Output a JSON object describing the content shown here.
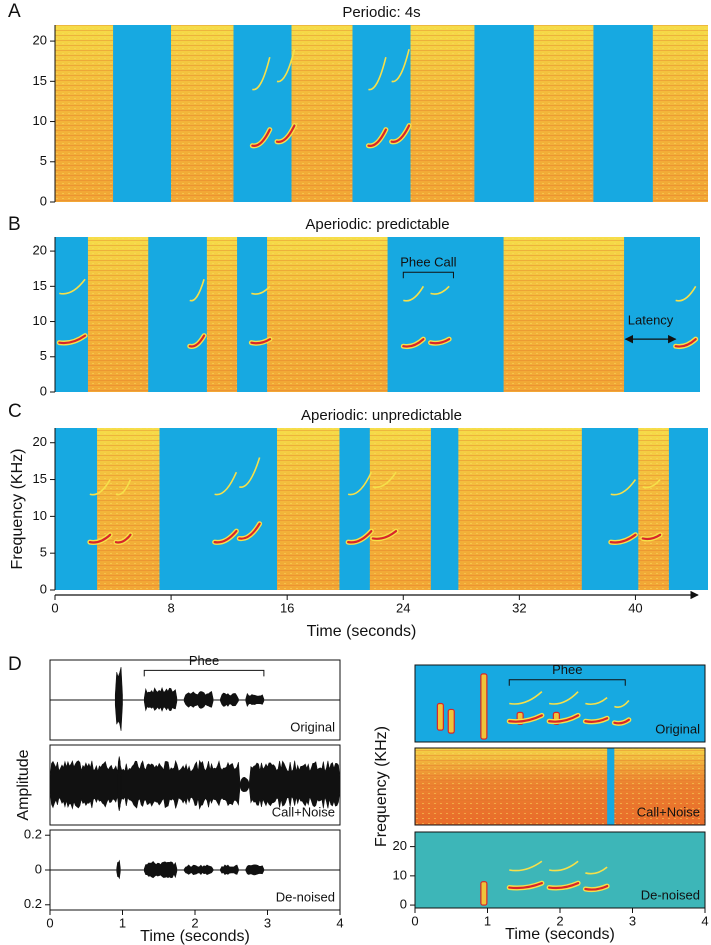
{
  "chart_data": [
    {
      "type": "spectrogram",
      "panel": "A",
      "title": "Periodic: 4s",
      "xlim": [
        0,
        45
      ],
      "ylim": [
        0,
        22
      ],
      "yticks": [
        0,
        5,
        10,
        15,
        20
      ],
      "background": "#17a9e1",
      "noise_color": "#f3b13a",
      "noise": [
        [
          0,
          4
        ],
        [
          8,
          12.3
        ],
        [
          16.3,
          20.5
        ],
        [
          24.5,
          28.9
        ],
        [
          33,
          37.1
        ],
        [
          41.2,
          45
        ]
      ],
      "calls": [
        [
          13.6,
          14.8,
          7,
          9
        ],
        [
          15.3,
          16.5,
          7.5,
          9.5
        ],
        [
          21.6,
          22.8,
          7,
          9
        ],
        [
          23.2,
          24.4,
          7.5,
          9.5
        ]
      ]
    },
    {
      "type": "spectrogram",
      "panel": "B",
      "title": "Aperiodic: predictable",
      "xlim": [
        0,
        45
      ],
      "ylim": [
        0,
        22
      ],
      "yticks": [
        0,
        5,
        10,
        15,
        20
      ],
      "background": "#17a9e1",
      "noise_color": "#f3b13a",
      "noise": [
        [
          2.3,
          6.5
        ],
        [
          10.6,
          12.7
        ],
        [
          14.8,
          23.2
        ],
        [
          31.3,
          39.7
        ]
      ],
      "calls": [
        [
          0.3,
          2.1,
          7,
          8
        ],
        [
          9.4,
          10.4,
          6.5,
          8
        ],
        [
          13.7,
          15,
          7,
          7.5
        ],
        [
          24.3,
          25.7,
          6.5,
          7.5
        ],
        [
          26.2,
          27.5,
          7,
          7.5
        ],
        [
          43.3,
          44.7,
          6.5,
          7.5
        ]
      ],
      "annotations": [
        {
          "text": "Phee Call",
          "style": "bracket",
          "x": [
            24.3,
            27.8
          ],
          "y": 17
        },
        {
          "text": "Latency",
          "style": "arrow",
          "x": [
            39.8,
            43.3
          ],
          "y": 7.5
        }
      ]
    },
    {
      "type": "spectrogram",
      "panel": "C",
      "title": "Aperiodic: unpredictable",
      "xlim": [
        0,
        45
      ],
      "ylim": [
        0,
        22
      ],
      "yticks": [
        0,
        5,
        10,
        15,
        20
      ],
      "xticks": [
        0,
        8,
        16,
        24,
        32,
        40
      ],
      "x_label": "Time (seconds)",
      "y_label": "Frequency (KHz)",
      "background": "#17a9e1",
      "noise_color": "#f3b13a",
      "noise": [
        [
          2.9,
          7.2
        ],
        [
          15.3,
          19.6
        ],
        [
          21.7,
          25.9
        ],
        [
          27.8,
          36.3
        ],
        [
          40.2,
          42.3
        ]
      ],
      "calls": [
        [
          2.4,
          3.8,
          6.5,
          7.5
        ],
        [
          4.2,
          5.2,
          6.5,
          7.5
        ],
        [
          11,
          12.5,
          6.5,
          8
        ],
        [
          12.7,
          14.1,
          7,
          9
        ],
        [
          20.2,
          21.8,
          6.5,
          8
        ],
        [
          21.9,
          23.5,
          7,
          8
        ],
        [
          38.3,
          40,
          6.5,
          7.5
        ],
        [
          40.5,
          41.7,
          7,
          7.5
        ]
      ]
    },
    {
      "type": "waveform",
      "panel": "D",
      "label": "Original",
      "xlim": [
        0,
        4
      ],
      "ylim": [
        -0.23,
        0.23
      ],
      "bursts": [
        [
          0.9,
          1.0,
          0.2
        ],
        [
          1.3,
          1.75,
          0.07
        ],
        [
          1.85,
          2.25,
          0.05
        ],
        [
          2.35,
          2.6,
          0.04
        ],
        [
          2.7,
          2.95,
          0.04
        ]
      ],
      "annotations": [
        {
          "text": "Phee",
          "style": "bracket",
          "x": [
            1.3,
            2.95
          ],
          "y": 0.17
        }
      ]
    },
    {
      "type": "waveform",
      "label": "Call+Noise",
      "xlim": [
        0,
        4
      ],
      "ylim": [
        -0.23,
        0.23
      ],
      "y_label": "Amplitude",
      "bursts": [
        [
          0,
          2.62,
          0.14
        ],
        [
          2.62,
          2.75,
          0.05
        ],
        [
          2.75,
          4,
          0.14
        ],
        [
          0.93,
          0.98,
          0.22
        ]
      ]
    },
    {
      "type": "waveform",
      "label": "De-noised",
      "xlim": [
        0,
        4
      ],
      "ylim": [
        -0.23,
        0.23
      ],
      "yticks": [
        0.2,
        0,
        {
          "value": -0.2,
          "label": "0.2"
        }
      ],
      "xticks": [
        0,
        1,
        2,
        3,
        4
      ],
      "x_label": "Time (seconds)",
      "bursts": [
        [
          0.92,
          0.97,
          0.07
        ],
        [
          1.3,
          1.75,
          0.05
        ],
        [
          1.85,
          2.25,
          0.03
        ],
        [
          2.35,
          2.6,
          0.03
        ],
        [
          2.7,
          2.95,
          0.03
        ]
      ]
    },
    {
      "type": "spectrogram",
      "label": "Original",
      "xlim": [
        0,
        4
      ],
      "ylim": [
        -1,
        25
      ],
      "background": "#17a9e1",
      "noise_color": "#f3b13a",
      "clicks": [
        [
          0.35,
          3,
          12
        ],
        [
          0.5,
          2,
          10
        ],
        [
          0.95,
          0,
          22
        ],
        [
          1.45,
          5,
          9
        ],
        [
          1.95,
          5,
          9
        ]
      ],
      "calls": [
        [
          1.3,
          1.75,
          6,
          8
        ],
        [
          1.85,
          2.25,
          6,
          8
        ],
        [
          2.35,
          2.65,
          6,
          7
        ],
        [
          2.75,
          2.95,
          5.5,
          6.5
        ]
      ],
      "annotations": [
        {
          "text": "Phee",
          "style": "bracket",
          "x": [
            1.3,
            2.9
          ],
          "y": 20
        }
      ]
    },
    {
      "type": "spectrogram",
      "label": "Call+Noise",
      "xlim": [
        0,
        4
      ],
      "ylim": [
        -1,
        25
      ],
      "y_label": "Frequency (KHz)",
      "background": "#17a9e1",
      "noise_color": "#e8622a",
      "noise": [
        [
          0,
          2.65
        ],
        [
          2.75,
          4
        ]
      ]
    },
    {
      "type": "spectrogram",
      "label": "De-noised",
      "xlim": [
        0,
        4
      ],
      "ylim": [
        -1,
        25
      ],
      "yticks": [
        0,
        10,
        20
      ],
      "xticks": [
        0,
        1,
        2,
        3,
        4
      ],
      "x_label": "Time (seconds)",
      "background": "#3db6b8",
      "noise_color": "#f3b13a",
      "clicks": [
        [
          0.95,
          0,
          8
        ]
      ],
      "calls": [
        [
          1.3,
          1.75,
          6,
          7.5
        ],
        [
          1.85,
          2.25,
          6,
          7.5
        ],
        [
          2.35,
          2.65,
          5.5,
          6.5
        ]
      ]
    }
  ]
}
